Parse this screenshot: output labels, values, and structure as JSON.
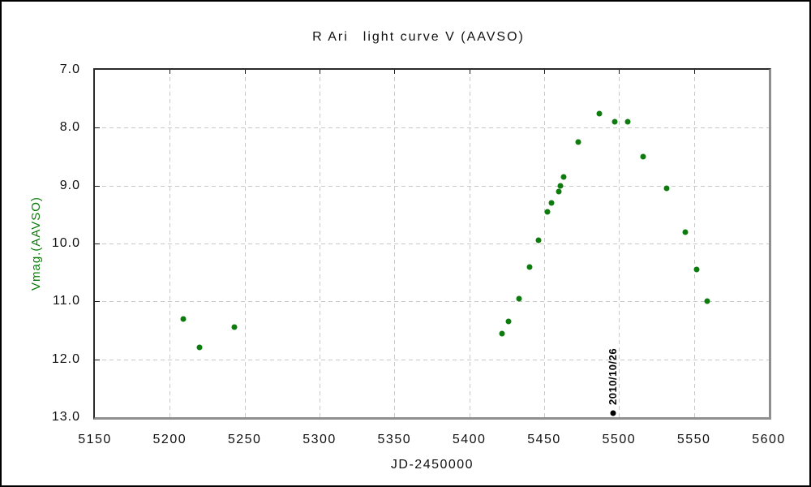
{
  "page": {
    "background": "#ffffff",
    "frame_border_color": "#000000"
  },
  "chart_data": {
    "type": "scatter",
    "title": "R Ari　light curve V (AAVSO)",
    "xlabel": "JD-2450000",
    "ylabel": "Vmag.(AAVSO)",
    "ylabel_color": "#0a7d0a",
    "x_min": 5150,
    "x_max": 5600,
    "y_top": 7.0,
    "y_bottom": 13.0,
    "y_axis_inverted": true,
    "grid": "dashed",
    "grid_color": "#c9c9c9",
    "axis_color": "#2a2a2a",
    "shadow_border_color": "#8f8f8f",
    "legend": "none",
    "x_ticks": [
      5150,
      5200,
      5250,
      5300,
      5350,
      5400,
      5450,
      5500,
      5550,
      5600
    ],
    "x_tick_labels": [
      "5150",
      "5200",
      "5250",
      "5300",
      "5350",
      "5400",
      "5450",
      "5500",
      "5550",
      "5600"
    ],
    "y_ticks": [
      7,
      8,
      9,
      10,
      11,
      12,
      13
    ],
    "y_tick_labels": [
      "7.0",
      "8.0",
      "9.0",
      "10.0",
      "11.0",
      "12.0",
      "13.0"
    ],
    "series": [
      {
        "name": "V (AAVSO)",
        "color": "#0d7b0d",
        "marker": "circle",
        "points": [
          [
            5209,
            11.3
          ],
          [
            5220,
            11.8
          ],
          [
            5243,
            11.45
          ],
          [
            5422,
            11.55
          ],
          [
            5426,
            11.35
          ],
          [
            5433,
            10.95
          ],
          [
            5440,
            10.4
          ],
          [
            5446,
            9.95
          ],
          [
            5452,
            9.45
          ],
          [
            5455,
            9.3
          ],
          [
            5460,
            9.1
          ],
          [
            5461,
            9.0
          ],
          [
            5463,
            8.85
          ],
          [
            5473,
            8.25
          ],
          [
            5487,
            7.75
          ],
          [
            5497,
            7.9
          ],
          [
            5506,
            7.9
          ],
          [
            5516,
            8.5
          ],
          [
            5532,
            9.05
          ],
          [
            5544,
            9.8
          ],
          [
            5552,
            10.45
          ],
          [
            5559,
            11.0
          ]
        ]
      }
    ],
    "annotation": {
      "text": "2010/10/26",
      "jd": 5496,
      "marker_mag": 12.93,
      "color": "#000000"
    }
  }
}
